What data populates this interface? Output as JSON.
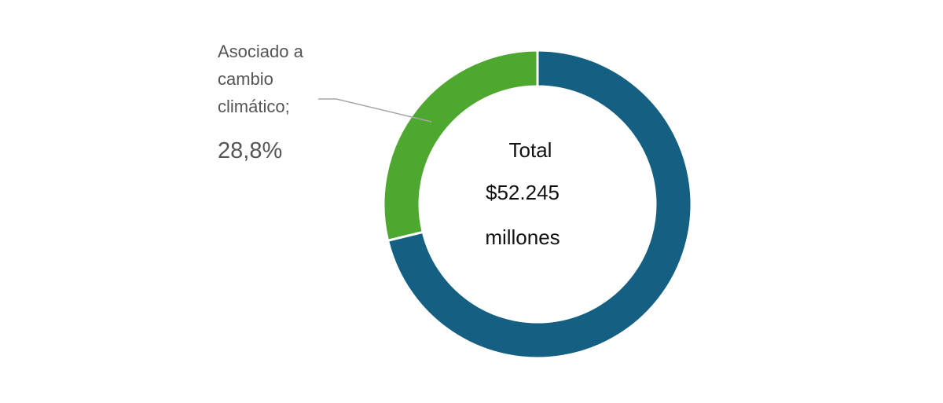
{
  "chart_data": {
    "type": "pie",
    "variant": "donut",
    "total_value": 52245,
    "slices": [
      {
        "label": "Asociado a cambio climático;",
        "percent": 28.8,
        "percent_label": "28,8%",
        "color": "#4ea72e"
      },
      {
        "label": "",
        "percent": 71.2,
        "color": "#156082"
      }
    ],
    "center": {
      "line1": "Total",
      "line2": "$52.245",
      "line3": "millones"
    },
    "callout_lines": [
      "Asociado a",
      "cambio",
      "climático;"
    ]
  }
}
